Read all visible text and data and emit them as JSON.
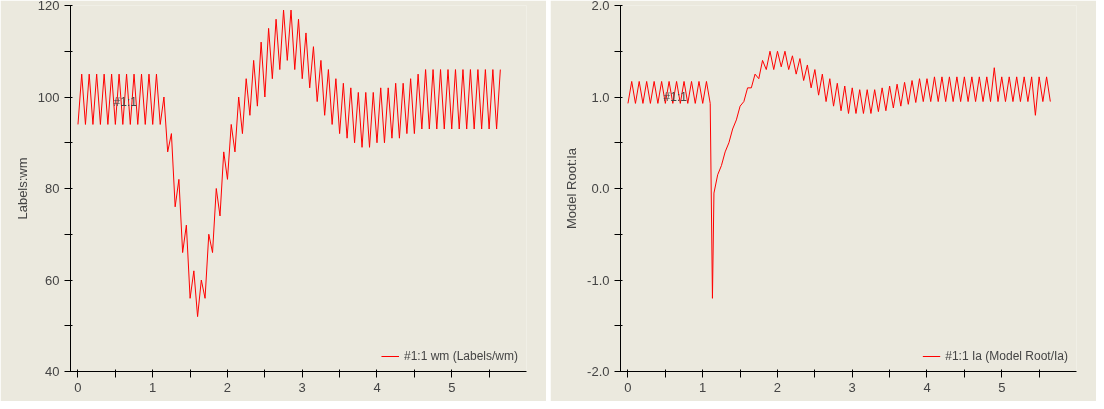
{
  "chart_data": [
    {
      "type": "line",
      "ylabel": "Labels:wm",
      "xlim": [
        -0.1,
        6.0
      ],
      "ylim": [
        40,
        120
      ],
      "xticks": [
        0,
        {
          "value": 0.5,
          "label": null
        },
        1,
        {
          "value": 1.5,
          "label": null
        },
        2,
        {
          "value": 2.5,
          "label": null
        },
        3,
        {
          "value": 3.5,
          "label": null
        },
        4,
        {
          "value": 4.5,
          "label": null
        },
        5,
        {
          "value": 5.5,
          "label": null
        }
      ],
      "yticks": [
        40,
        {
          "value": 50,
          "label": null
        },
        60,
        {
          "value": 70,
          "label": null
        },
        80,
        {
          "value": 90,
          "label": null
        },
        100,
        {
          "value": 110,
          "label": null
        },
        120
      ],
      "grid": false,
      "legend": "bottom right",
      "marker": "none",
      "line_style": "solid",
      "annotations": [
        {
          "text": "#1:1",
          "x": 0.45,
          "y": 99
        }
      ],
      "series": [
        {
          "name": "#1:1 wm (Labels/wm)",
          "color": "#ff0000",
          "x": [
            0,
            0.05,
            0.1,
            0.15,
            0.2,
            0.25,
            0.3,
            0.35,
            0.4,
            0.45,
            0.5,
            0.55,
            0.6,
            0.65,
            0.7,
            0.75,
            0.8,
            0.85,
            0.9,
            0.95,
            1.0,
            1.05,
            1.1,
            1.15,
            1.2,
            1.25,
            1.3,
            1.35,
            1.4,
            1.45,
            1.5,
            1.55,
            1.6,
            1.65,
            1.7,
            1.75,
            1.8,
            1.85,
            1.9,
            1.95,
            2.0,
            2.05,
            2.1,
            2.15,
            2.2,
            2.25,
            2.3,
            2.35,
            2.4,
            2.45,
            2.5,
            2.55,
            2.6,
            2.65,
            2.7,
            2.75,
            2.8,
            2.85,
            2.9,
            2.95,
            3.0,
            3.05,
            3.1,
            3.15,
            3.2,
            3.25,
            3.3,
            3.35,
            3.4,
            3.45,
            3.5,
            3.55,
            3.6,
            3.65,
            3.7,
            3.75,
            3.8,
            3.85,
            3.9,
            3.95,
            4.0,
            4.05,
            4.1,
            4.15,
            4.2,
            4.25,
            4.3,
            4.35,
            4.4,
            4.45,
            4.5,
            4.55,
            4.6,
            4.65,
            4.7,
            4.75,
            4.8,
            4.85,
            4.9,
            4.95,
            5.0,
            5.05,
            5.1,
            5.15,
            5.2,
            5.25,
            5.3,
            5.35,
            5.4,
            5.45,
            5.5,
            5.55,
            5.6,
            5.65
          ],
          "values": [
            94,
            105,
            94,
            105,
            94,
            105,
            94,
            105,
            94,
            105,
            94,
            105,
            94,
            105,
            94,
            105,
            94,
            105,
            94,
            105,
            94,
            105,
            94,
            100,
            88,
            92,
            76,
            82,
            66,
            72,
            56,
            62,
            52,
            60,
            56,
            70,
            66,
            80,
            74,
            88,
            82,
            94,
            88,
            100,
            92,
            104,
            96,
            108,
            98,
            112,
            100,
            115,
            104,
            117,
            106,
            119,
            108,
            119,
            106,
            117,
            104,
            114,
            102,
            111,
            99,
            108,
            96,
            106,
            94,
            104,
            92,
            103,
            91,
            102,
            90,
            101,
            89,
            101,
            89,
            101,
            90,
            102,
            90,
            102,
            91,
            103,
            91,
            103,
            92,
            104,
            92,
            105,
            93,
            106,
            93,
            106,
            93,
            106,
            93,
            106,
            93,
            106,
            93,
            106,
            93,
            106,
            93,
            106,
            93,
            106,
            93,
            106,
            93,
            106
          ]
        }
      ]
    },
    {
      "type": "line",
      "ylabel": "Model Root:Ia",
      "xlim": [
        -0.1,
        6.0
      ],
      "ylim": [
        -2.0,
        2.0
      ],
      "xticks": [
        0,
        {
          "value": 0.5,
          "label": null
        },
        1,
        {
          "value": 1.5,
          "label": null
        },
        2,
        {
          "value": 2.5,
          "label": null
        },
        3,
        {
          "value": 3.5,
          "label": null
        },
        4,
        {
          "value": 4.5,
          "label": null
        },
        5,
        {
          "value": 5.5,
          "label": null
        }
      ],
      "yticks": [
        {
          "value": -2.0,
          "label": "-2.0"
        },
        {
          "value": -1.5,
          "label": null
        },
        {
          "value": -1.0,
          "label": "-1.0"
        },
        {
          "value": -0.5,
          "label": null
        },
        {
          "value": 0,
          "label": "0.0"
        },
        {
          "value": 0.5,
          "label": null
        },
        {
          "value": 1.0,
          "label": "1.0"
        },
        {
          "value": 1.5,
          "label": null
        },
        {
          "value": 2.0,
          "label": "2.0"
        }
      ],
      "grid": false,
      "legend": "bottom right",
      "marker": "none",
      "line_style": "solid",
      "annotations": [
        {
          "text": "#1:1",
          "x": 0.45,
          "y": 1.0
        }
      ],
      "series": [
        {
          "name": "#1:1 Ia (Model Root/Ia)",
          "color": "#ff0000",
          "x": [
            0,
            0.05,
            0.1,
            0.15,
            0.2,
            0.25,
            0.3,
            0.35,
            0.4,
            0.45,
            0.5,
            0.55,
            0.6,
            0.65,
            0.7,
            0.75,
            0.8,
            0.85,
            0.9,
            0.95,
            1.0,
            1.05,
            1.1,
            1.13,
            1.15,
            1.2,
            1.25,
            1.3,
            1.35,
            1.4,
            1.45,
            1.5,
            1.55,
            1.6,
            1.65,
            1.7,
            1.75,
            1.8,
            1.85,
            1.9,
            1.95,
            2.0,
            2.05,
            2.1,
            2.15,
            2.2,
            2.25,
            2.3,
            2.35,
            2.4,
            2.45,
            2.5,
            2.55,
            2.6,
            2.65,
            2.7,
            2.75,
            2.8,
            2.85,
            2.9,
            2.95,
            3.0,
            3.05,
            3.1,
            3.15,
            3.2,
            3.25,
            3.3,
            3.35,
            3.4,
            3.45,
            3.5,
            3.55,
            3.6,
            3.65,
            3.7,
            3.75,
            3.8,
            3.85,
            3.9,
            3.95,
            4.0,
            4.05,
            4.1,
            4.15,
            4.2,
            4.25,
            4.3,
            4.35,
            4.4,
            4.45,
            4.5,
            4.55,
            4.6,
            4.65,
            4.7,
            4.75,
            4.8,
            4.85,
            4.9,
            4.95,
            5.0,
            5.05,
            5.1,
            5.15,
            5.2,
            5.25,
            5.3,
            5.35,
            5.4,
            5.45,
            5.5,
            5.55,
            5.6,
            5.65
          ],
          "values": [
            0.93,
            1.17,
            0.93,
            1.17,
            0.93,
            1.17,
            0.93,
            1.17,
            0.93,
            1.17,
            0.93,
            1.17,
            0.93,
            1.17,
            0.93,
            1.17,
            0.93,
            1.17,
            0.93,
            1.17,
            0.93,
            1.17,
            0.93,
            -1.2,
            -0.05,
            0.15,
            0.25,
            0.4,
            0.5,
            0.65,
            0.75,
            0.9,
            0.95,
            1.1,
            1.1,
            1.25,
            1.2,
            1.4,
            1.3,
            1.5,
            1.3,
            1.5,
            1.33,
            1.5,
            1.3,
            1.45,
            1.25,
            1.42,
            1.18,
            1.35,
            1.1,
            1.3,
            1.02,
            1.25,
            0.95,
            1.2,
            0.9,
            1.15,
            0.85,
            1.12,
            0.82,
            1.1,
            0.82,
            1.08,
            0.82,
            1.08,
            0.82,
            1.08,
            0.84,
            1.1,
            0.85,
            1.12,
            0.88,
            1.14,
            0.9,
            1.16,
            0.92,
            1.18,
            0.94,
            1.2,
            0.95,
            1.2,
            0.95,
            1.22,
            0.95,
            1.22,
            0.95,
            1.22,
            0.95,
            1.22,
            0.95,
            1.22,
            0.95,
            1.22,
            0.95,
            1.22,
            0.95,
            1.22,
            0.95,
            1.32,
            0.95,
            1.22,
            0.95,
            1.22,
            0.95,
            1.22,
            0.95,
            1.22,
            0.95,
            1.22,
            0.8,
            1.22,
            0.95,
            1.22,
            0.95
          ]
        }
      ]
    }
  ]
}
